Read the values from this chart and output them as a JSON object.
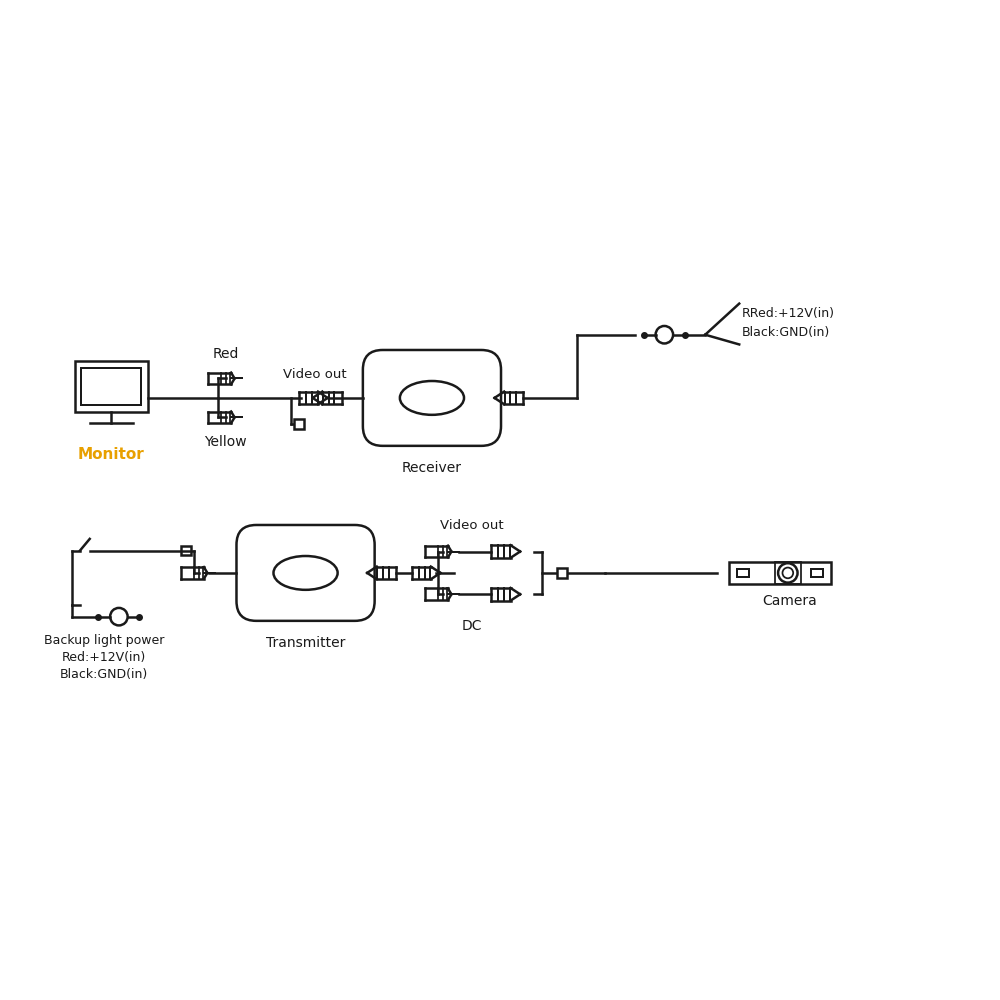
{
  "bg_color": "#ffffff",
  "line_color": "#1a1a1a",
  "monitor_label_color": "#e8a000",
  "monitor_label": "Monitor",
  "red_label": "Red",
  "yellow_label": "Yellow",
  "video_out_label": "Video out",
  "receiver_label": "Receiver",
  "rr_label": "RRed:+12V(in)\nBlack:GND(in)",
  "transmitter_label": "Transmitter",
  "dc_label": "DC",
  "video_out2_label": "Video out",
  "camera_label": "Camera",
  "backup_label": "Backup light power\nRed:+12V(in)\nBlack:GND(in)"
}
